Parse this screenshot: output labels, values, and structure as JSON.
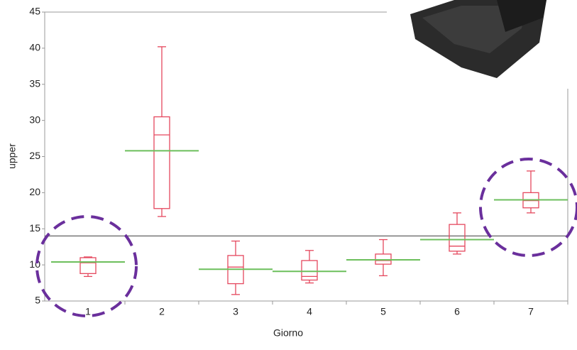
{
  "chart_data": {
    "type": "box",
    "x_label": "Giorno",
    "y_label": "upper",
    "categories": [
      "1",
      "2",
      "3",
      "4",
      "5",
      "6",
      "7"
    ],
    "whisker_low": [
      8.4,
      16.7,
      5.9,
      7.5,
      8.5,
      11.5,
      17.2
    ],
    "q1": [
      8.8,
      17.8,
      7.4,
      7.9,
      10.1,
      11.9,
      17.9
    ],
    "median": [
      10.3,
      28,
      9.7,
      8.4,
      10.6,
      12.6,
      18.9
    ],
    "q3": [
      11,
      30.5,
      11.3,
      10.6,
      11.5,
      15.6,
      20
    ],
    "whisker_high": [
      11.1,
      40.2,
      13.3,
      12,
      13.5,
      17.2,
      23
    ],
    "means": [
      10.4,
      25.8,
      9.4,
      9.1,
      10.7,
      13.5,
      19
    ],
    "reference_line": 14,
    "box_color": "#e5485e",
    "mean_color": "#6cbf5c",
    "ylim": [
      5,
      45
    ],
    "yticks": [
      5,
      10,
      15,
      20,
      25,
      30,
      35,
      40,
      45
    ]
  }
}
